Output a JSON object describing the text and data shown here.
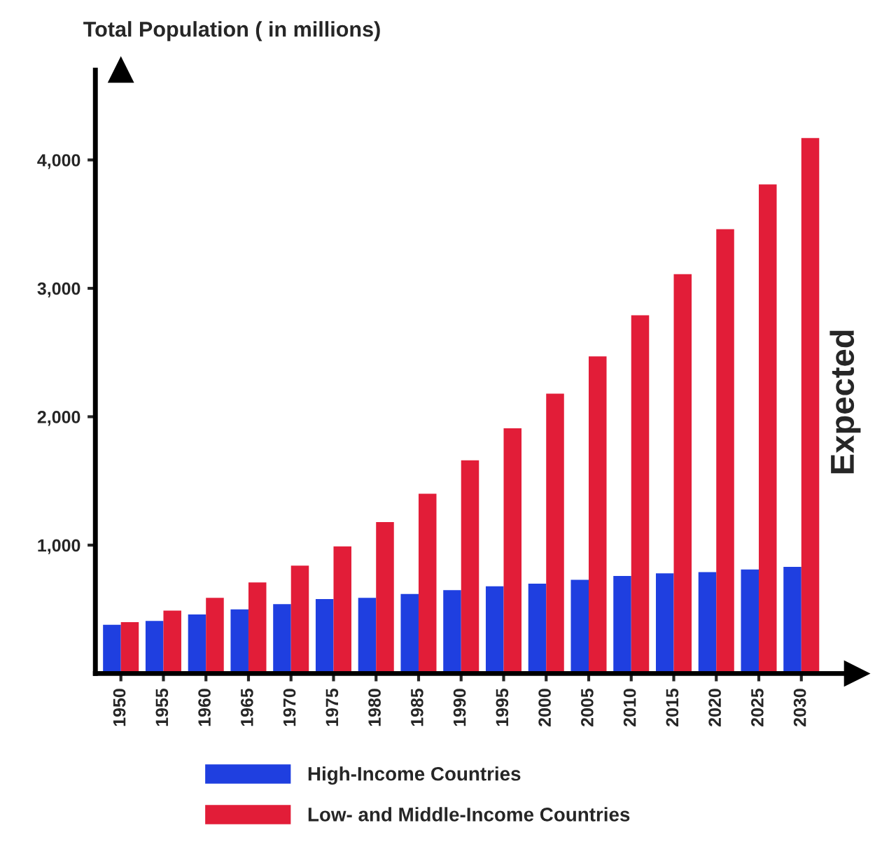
{
  "chart_data": {
    "type": "bar",
    "ylabel": "Total Population ( in millions)",
    "categories": [
      "1950",
      "1955",
      "1960",
      "1965",
      "1970",
      "1975",
      "1980",
      "1985",
      "1990",
      "1995",
      "2000",
      "2005",
      "2010",
      "2015",
      "2020",
      "2025",
      "2030"
    ],
    "series": [
      {
        "name": "High-Income Countries",
        "color": "#1f3fe0",
        "values": [
          380,
          410,
          460,
          500,
          540,
          580,
          590,
          620,
          650,
          680,
          700,
          730,
          760,
          780,
          790,
          810,
          830
        ]
      },
      {
        "name": "Low- and Middle-Income Countries",
        "color": "#e21d38",
        "values": [
          400,
          490,
          590,
          710,
          840,
          990,
          1180,
          1400,
          1660,
          1910,
          2180,
          2470,
          2790,
          3110,
          3460,
          3810,
          4170
        ]
      }
    ],
    "ylim": [
      0,
      4700
    ],
    "yticks": [
      {
        "value": 1000,
        "label": "1,000"
      },
      {
        "value": 2000,
        "label": "2,000"
      },
      {
        "value": 3000,
        "label": "3,000"
      },
      {
        "value": 4000,
        "label": "4,000"
      }
    ],
    "annotations": [
      "Expected"
    ],
    "grid": false,
    "legend": "bottom left"
  }
}
